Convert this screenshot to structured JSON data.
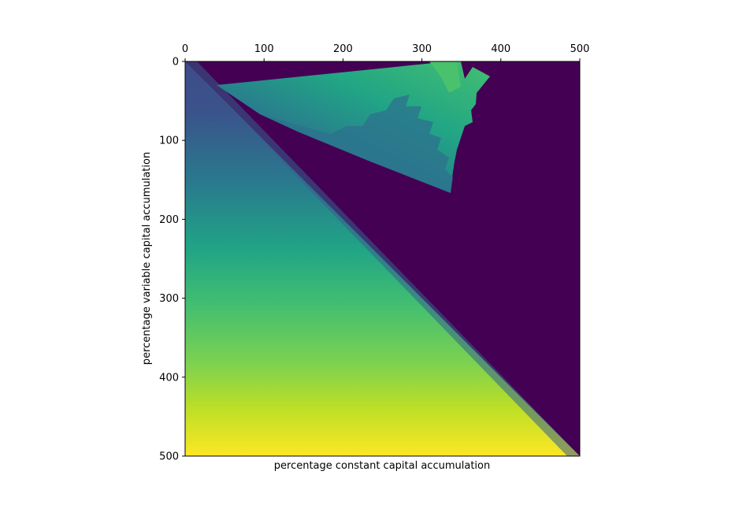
{
  "chart_data": {
    "type": "heatmap",
    "title": "",
    "xlabel": "percentage constant capital accumulation",
    "ylabel": "percentage variable capital accumulation",
    "x_ticks": [
      0,
      100,
      200,
      300,
      400,
      500
    ],
    "y_ticks": [
      0,
      100,
      200,
      300,
      400,
      500
    ],
    "xlim": [
      0,
      500
    ],
    "ylim": [
      500,
      0
    ],
    "x_axis_position": "top",
    "y_axis_inverted": true,
    "grid": false,
    "colormap": "viridis",
    "colorbar": false,
    "regions": [
      {
        "name": "lower-left gradient",
        "description": "values rise from dark blue at top to bright yellow at bottom-left",
        "boundary_line": {
          "from": [
            0,
            0
          ],
          "to": [
            500,
            500
          ]
        }
      },
      {
        "name": "dark plateau",
        "description": "uniform dark purple above the diagonal"
      },
      {
        "name": "upper wedge",
        "description": "teal to green fan region bounded by zigzag edges",
        "approx_vertices": [
          [
            40,
            30
          ],
          [
            330,
            0
          ],
          [
            390,
            18
          ],
          [
            360,
            90
          ],
          [
            340,
            170
          ]
        ]
      }
    ]
  }
}
